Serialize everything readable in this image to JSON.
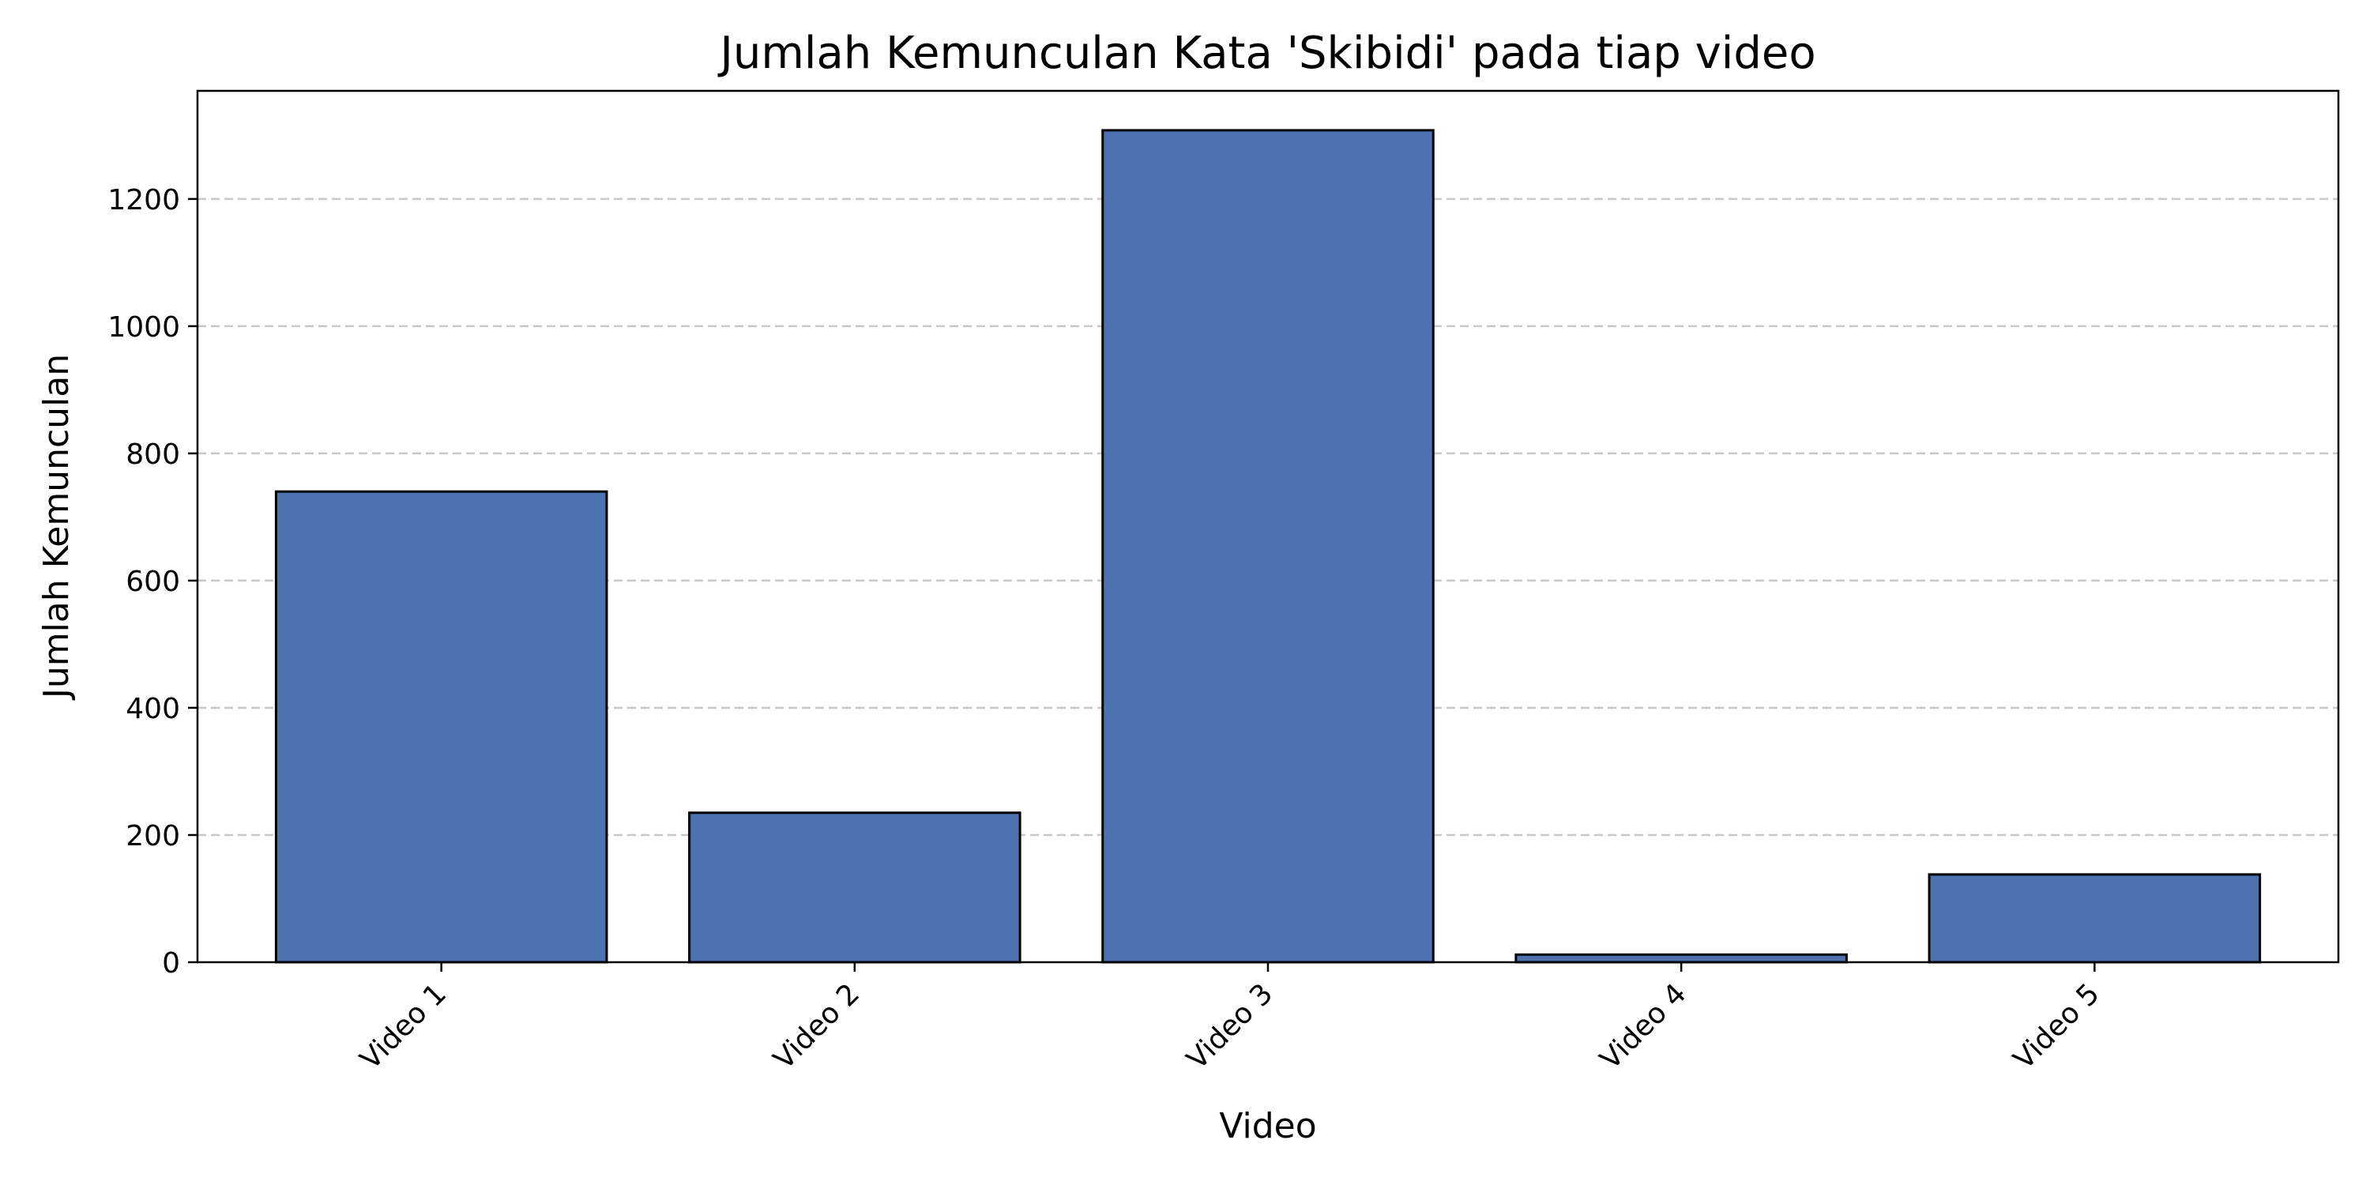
{
  "chart_data": {
    "type": "bar",
    "title": "Jumlah Kemunculan Kata 'Skibidi' pada tiap video",
    "xlabel": "Video",
    "ylabel": "Jumlah Kemunculan",
    "categories": [
      "Video 1",
      "Video 2",
      "Video 3",
      "Video 4",
      "Video 5"
    ],
    "values": [
      740,
      235,
      1308,
      12,
      138
    ],
    "ylim": [
      0,
      1370
    ],
    "yticks": [
      0,
      200,
      400,
      600,
      800,
      1000,
      1200
    ],
    "grid": "y-dashed",
    "legend": "none",
    "bar_color": "#4c72b0",
    "bar_edge_color": "#000000",
    "grid_color": "#c8c8c8"
  }
}
